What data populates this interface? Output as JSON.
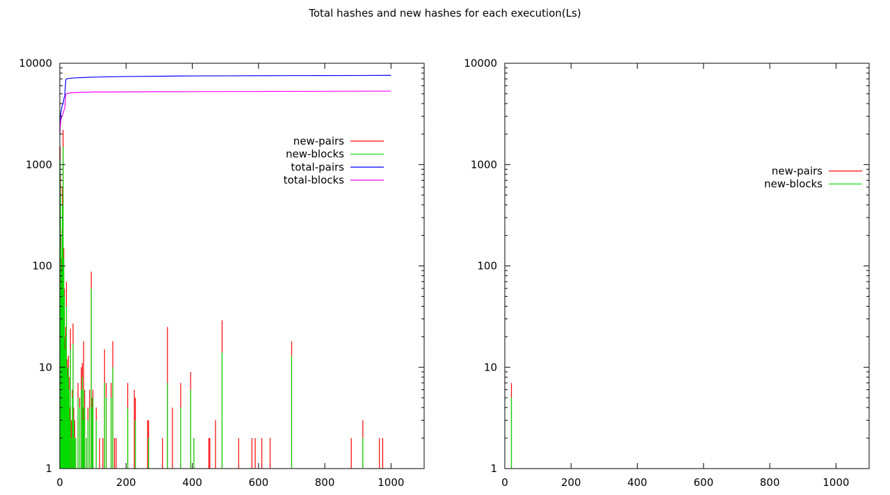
{
  "title": "Total hashes and new hashes for each execution(Ls)",
  "colors": {
    "new-pairs": "#ff0000",
    "new-blocks": "#00dd00",
    "total-pairs": "#0000ff",
    "total-blocks": "#ff00ff"
  },
  "chart_data": [
    {
      "type": "line",
      "title": "",
      "xlabel": "",
      "ylabel": "",
      "xlim": [
        0,
        1100
      ],
      "ylim": [
        1,
        10000
      ],
      "yscale": "log",
      "grid": false,
      "legend": "top-right",
      "x_ticks": [
        0,
        200,
        400,
        600,
        800,
        1000
      ],
      "y_ticks": [
        1,
        10,
        100,
        1000,
        10000
      ],
      "series": [
        {
          "name": "new-pairs",
          "type": "impulse",
          "x": [
            1,
            2,
            3,
            4,
            5,
            6,
            7,
            8,
            9,
            10,
            12,
            14,
            16,
            18,
            20,
            22,
            24,
            26,
            28,
            30,
            32,
            35,
            38,
            40,
            42,
            45,
            48,
            55,
            60,
            65,
            68,
            70,
            72,
            75,
            80,
            85,
            90,
            95,
            98,
            100,
            110,
            120,
            130,
            135,
            140,
            155,
            160,
            165,
            170,
            205,
            225,
            228,
            265,
            268,
            310,
            325,
            340,
            365,
            395,
            405,
            450,
            453,
            470,
            490,
            540,
            580,
            590,
            610,
            635,
            700,
            880,
            915,
            965,
            975
          ],
          "y": [
            1500,
            800,
            200,
            120,
            80,
            40,
            230,
            600,
            350,
            2200,
            150,
            60,
            20,
            25,
            70,
            12,
            10,
            13,
            8,
            4,
            24,
            3,
            6,
            27,
            4,
            3,
            2,
            7,
            5,
            10,
            11,
            4,
            18,
            6,
            2,
            4,
            6,
            88,
            5,
            6,
            4,
            2,
            2,
            15,
            7,
            7,
            18,
            2,
            2,
            7,
            6,
            5,
            3,
            3,
            2,
            25,
            4,
            7,
            9,
            2,
            2,
            2,
            3,
            29,
            2,
            2,
            2,
            2,
            2,
            18,
            2,
            3,
            2,
            2
          ]
        },
        {
          "name": "new-blocks",
          "type": "impulse",
          "x": [
            1,
            2,
            3,
            4,
            5,
            6,
            7,
            8,
            9,
            10,
            12,
            14,
            16,
            18,
            20,
            22,
            24,
            26,
            28,
            30,
            32,
            35,
            38,
            40,
            42,
            45,
            48,
            55,
            60,
            65,
            68,
            70,
            72,
            75,
            80,
            85,
            90,
            95,
            98,
            100,
            110,
            135,
            140,
            155,
            160,
            205,
            228,
            268,
            325,
            365,
            395,
            405,
            490,
            700,
            915
          ],
          "y": [
            1100,
            500,
            150,
            90,
            60,
            30,
            200,
            400,
            300,
            1500,
            120,
            50,
            15,
            20,
            40,
            10,
            8,
            10,
            6,
            3,
            15,
            2,
            5,
            17,
            3,
            2,
            2,
            5,
            4,
            6,
            8,
            3,
            6,
            4,
            2,
            3,
            4,
            60,
            4,
            5,
            3,
            7,
            5,
            5,
            10,
            4,
            3,
            2,
            7,
            4,
            6,
            2,
            14,
            13,
            2
          ]
        },
        {
          "name": "total-pairs",
          "type": "line",
          "x": [
            0,
            1,
            2,
            3,
            5,
            8,
            10,
            12,
            15,
            18,
            20,
            30,
            50,
            80,
            100,
            200,
            300,
            400,
            500,
            600,
            700,
            800,
            900,
            1000
          ],
          "y": [
            2000,
            2500,
            3000,
            3200,
            3500,
            3900,
            4000,
            4400,
            4800,
            6800,
            7000,
            7100,
            7200,
            7250,
            7300,
            7400,
            7450,
            7500,
            7520,
            7540,
            7560,
            7570,
            7580,
            7600
          ]
        },
        {
          "name": "total-blocks",
          "type": "line",
          "x": [
            0,
            1,
            2,
            3,
            5,
            8,
            10,
            12,
            15,
            18,
            20,
            30,
            50,
            80,
            100,
            200,
            300,
            400,
            500,
            600,
            700,
            800,
            900,
            1000
          ],
          "y": [
            2000,
            2300,
            2500,
            2700,
            2900,
            3100,
            3200,
            3400,
            3600,
            4900,
            5000,
            5100,
            5150,
            5180,
            5200,
            5220,
            5240,
            5250,
            5260,
            5270,
            5280,
            5290,
            5300,
            5310
          ]
        }
      ]
    },
    {
      "type": "line",
      "title": "",
      "xlabel": "",
      "ylabel": "",
      "xlim": [
        0,
        1100
      ],
      "ylim": [
        1,
        10000
      ],
      "yscale": "log",
      "grid": false,
      "legend": "top-right",
      "x_ticks": [
        0,
        200,
        400,
        600,
        800,
        1000
      ],
      "y_ticks": [
        1,
        10,
        100,
        1000,
        10000
      ],
      "series": [
        {
          "name": "new-pairs",
          "type": "impulse",
          "x": [
            20
          ],
          "y": [
            7
          ]
        },
        {
          "name": "new-blocks",
          "type": "impulse",
          "x": [
            20
          ],
          "y": [
            5
          ]
        }
      ]
    }
  ]
}
